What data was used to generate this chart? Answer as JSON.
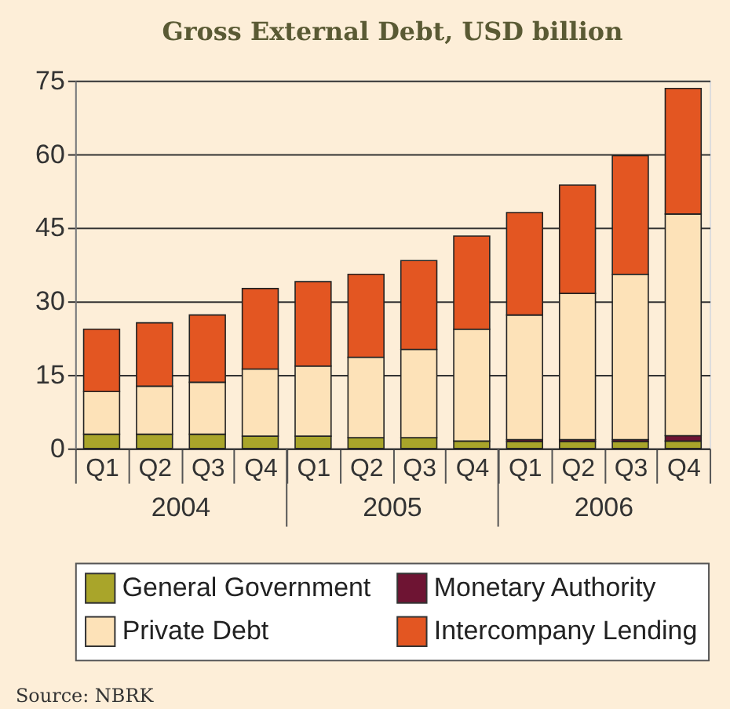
{
  "chart_data": {
    "type": "bar",
    "title": "Gross External Debt, USD billion",
    "categories": [
      "Q1",
      "Q2",
      "Q3",
      "Q4",
      "Q1",
      "Q2",
      "Q3",
      "Q4",
      "Q1",
      "Q2",
      "Q3",
      "Q4"
    ],
    "stacked": true,
    "series": [
      {
        "name": "General Government",
        "color": "#a9a52a",
        "values": [
          2.9,
          2.9,
          2.9,
          2.5,
          2.5,
          2.2,
          2.2,
          1.5,
          1.4,
          1.4,
          1.4,
          1.5
        ]
      },
      {
        "name": "Monetary Authority",
        "color": "#6e1433",
        "values": [
          null,
          null,
          null,
          null,
          null,
          null,
          null,
          null,
          0.4,
          0.4,
          0.4,
          1.1
        ]
      },
      {
        "name": "Private Debt",
        "color": "#fde2b8",
        "values": [
          8.7,
          9.8,
          10.6,
          13.7,
          14.3,
          16.4,
          18.0,
          22.8,
          25.4,
          29.8,
          33.7,
          45.2
        ]
      },
      {
        "name": "Intercompany Lending",
        "color": "#e35622",
        "values": [
          12.7,
          12.9,
          13.7,
          16.4,
          17.2,
          16.9,
          18.1,
          19.0,
          20.9,
          22.1,
          24.2,
          25.6
        ]
      }
    ],
    "ylim": [
      0,
      75
    ],
    "yticks": [
      0,
      15,
      30,
      45,
      60,
      75
    ],
    "grid": "y",
    "legend": "bottom",
    "annotations": [
      "2004",
      "2005",
      "2006",
      "Source: NBRK"
    ]
  }
}
